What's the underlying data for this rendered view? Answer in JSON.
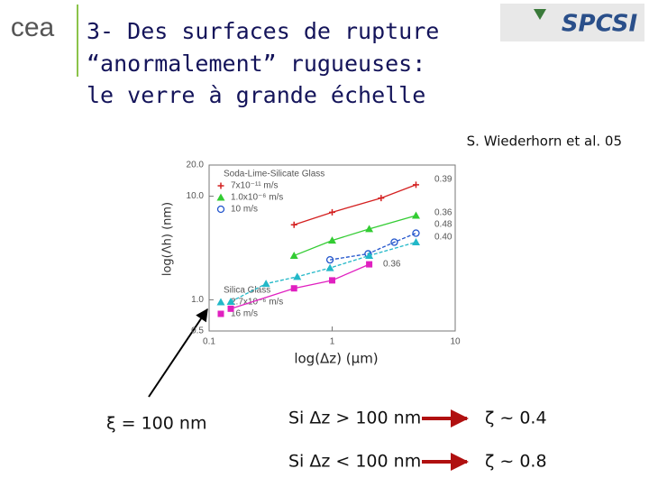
{
  "slide": {
    "logo_left": "cea",
    "logo_right": "SPCSI",
    "title_lines": [
      "3- Des surfaces de rupture",
      "“anormalement” rugueuses:",
      "le verre à grande échelle"
    ],
    "reference": "S. Wiederhorn et al. 05",
    "xi_label": "ξ = 100 nm",
    "rules": [
      {
        "condition": "Si Δz > 100 nm",
        "result": "ζ ~ 0.4"
      },
      {
        "condition": "Si Δz < 100 nm",
        "result": "ζ ~ 0.8"
      }
    ]
  },
  "chart_data": {
    "type": "scatter",
    "x_label": "log(Δz) (µm)",
    "y_label": "log(Λh) (nm)",
    "log_x": true,
    "log_y": true,
    "xlim": [
      0.1,
      10
    ],
    "ylim": [
      0.5,
      20
    ],
    "xticks": [
      0.1,
      1,
      10
    ],
    "yticks": [
      0.5,
      {
        "value": 1,
        "label": "1.0"
      },
      {
        "value": 10,
        "label": "10.0"
      },
      {
        "value": 20,
        "label": "20.0"
      }
    ],
    "groups": [
      "Soda-Lime-Silicate Glass",
      "Silica Glass"
    ],
    "series": [
      {
        "name": "7x10⁻¹¹ m/s",
        "group": 0,
        "color": "#d42020",
        "marker": "plus",
        "dashed": false,
        "exponent": "0.39",
        "x": [
          0.49,
          1.0,
          2.5,
          4.8
        ],
        "values": [
          5.3,
          7.0,
          9.6,
          12.9
        ]
      },
      {
        "name": "1.0x10⁻⁶ m/s",
        "group": 0,
        "color": "#33cc33",
        "marker": "triangle",
        "dashed": false,
        "exponent": "0.36",
        "x": [
          0.49,
          1.0,
          2.0,
          4.8
        ],
        "values": [
          2.67,
          3.74,
          4.83,
          6.5
        ]
      },
      {
        "name": "10 m/s",
        "group": 0,
        "color": "#2255cc",
        "marker": "circle",
        "dashed": true,
        "exponent": "0.48",
        "x": [
          0.96,
          1.96,
          3.2,
          4.8
        ],
        "values": [
          2.43,
          2.78,
          3.6,
          4.4
        ]
      },
      {
        "name": "2.7x10⁻⁶ m/s",
        "group": 1,
        "color": "#22b8c8",
        "marker": "triangle",
        "dashed": true,
        "exponent": "0.40",
        "x": [
          0.15,
          0.29,
          0.52,
          0.96,
          2.0,
          4.8
        ],
        "values": [
          0.96,
          1.43,
          1.67,
          2.03,
          2.67,
          3.6
        ]
      },
      {
        "name": "16 m/s",
        "group": 1,
        "color": "#e020c0",
        "marker": "square",
        "dashed": false,
        "exponent": "0.36",
        "x": [
          0.15,
          0.49,
          1.0,
          2.0
        ],
        "values": [
          0.82,
          1.29,
          1.54,
          2.2
        ]
      }
    ]
  }
}
